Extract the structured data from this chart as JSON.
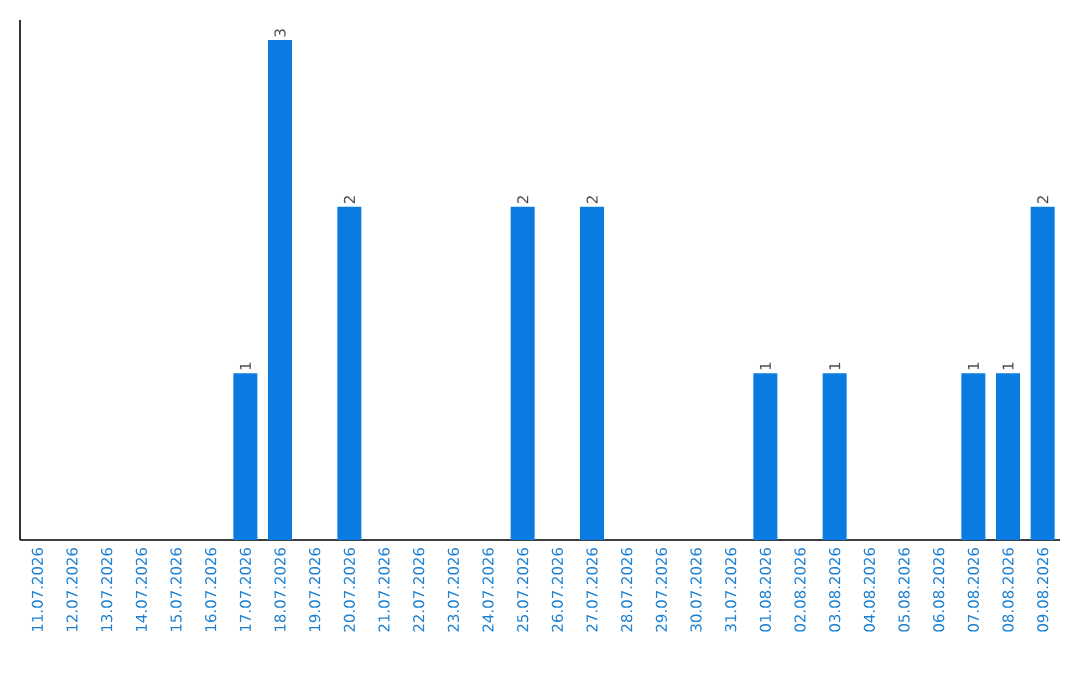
{
  "chart_data": {
    "type": "bar",
    "categories": [
      "11.07.2026",
      "12.07.2026",
      "13.07.2026",
      "14.07.2026",
      "15.07.2026",
      "16.07.2026",
      "17.07.2026",
      "18.07.2026",
      "19.07.2026",
      "20.07.2026",
      "21.07.2026",
      "22.07.2026",
      "23.07.2026",
      "24.07.2026",
      "25.07.2026",
      "26.07.2026",
      "27.07.2026",
      "28.07.2026",
      "29.07.2026",
      "30.07.2026",
      "31.07.2026",
      "01.08.2026",
      "02.08.2026",
      "03.08.2026",
      "04.08.2026",
      "05.08.2026",
      "06.08.2026",
      "07.08.2026",
      "08.08.2026",
      "09.08.2026"
    ],
    "values": [
      0,
      0,
      0,
      0,
      0,
      0,
      1,
      3,
      0,
      2,
      0,
      0,
      0,
      0,
      2,
      0,
      2,
      0,
      0,
      0,
      0,
      1,
      0,
      1,
      0,
      0,
      0,
      1,
      1,
      2
    ],
    "value_labels": [
      null,
      null,
      null,
      null,
      null,
      null,
      "1",
      "3",
      null,
      "2",
      null,
      null,
      null,
      null,
      "2",
      null,
      "2",
      null,
      null,
      null,
      null,
      "1",
      null,
      "1",
      null,
      null,
      null,
      "1",
      "1",
      "2"
    ],
    "color": "#0a7be0"
  }
}
